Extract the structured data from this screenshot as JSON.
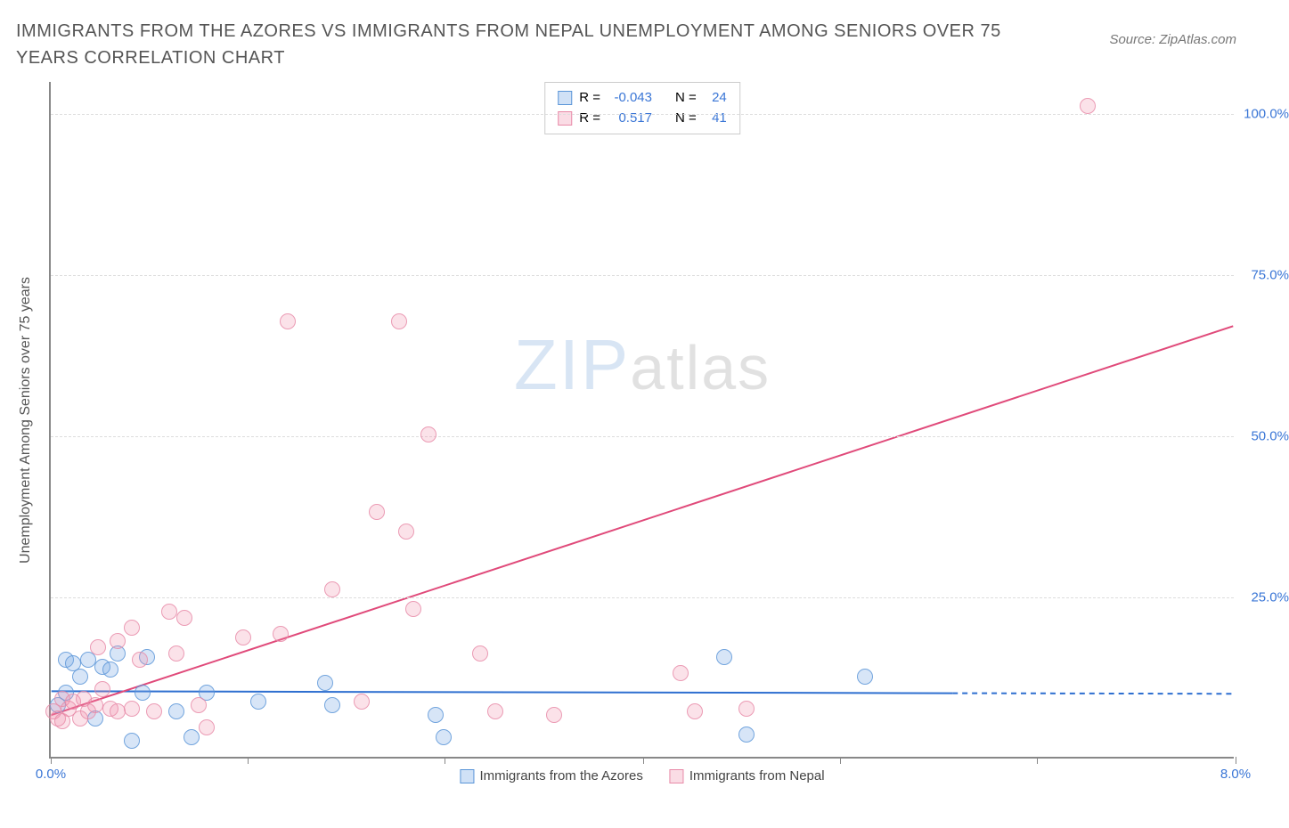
{
  "title": "IMMIGRANTS FROM THE AZORES VS IMMIGRANTS FROM NEPAL UNEMPLOYMENT AMONG SENIORS OVER 75 YEARS CORRELATION CHART",
  "source_label": "Source: ZipAtlas.com",
  "ylabel": "Unemployment Among Seniors over 75 years",
  "watermark_zip": "ZIP",
  "watermark_atlas": "atlas",
  "chart": {
    "type": "scatter",
    "background_color": "#ffffff",
    "grid_color": "#dddddd",
    "axis_color": "#888888",
    "xlim": [
      0,
      8
    ],
    "ylim": [
      0,
      105
    ],
    "x_ticks": [
      0,
      1.33,
      2.66,
      4.0,
      5.33,
      6.66,
      8.0
    ],
    "x_tick_labels": {
      "0": "0.0%",
      "8": "8.0%"
    },
    "x_tick_label_color": "#3a76d6",
    "y_ticks": [
      25,
      50,
      75,
      100
    ],
    "y_tick_labels": {
      "25": "25.0%",
      "50": "50.0%",
      "75": "75.0%",
      "100": "100.0%"
    },
    "y_tick_label_color": "#3a76d6",
    "point_radius": 9,
    "series": [
      {
        "name": "Immigrants from the Azores",
        "fill_color": "rgba(120,170,230,0.35)",
        "stroke_color": "#5a95d8",
        "trend_color": "#2e6fd0",
        "trend_style": "solid_then_dashed",
        "trend_solid_until_x": 6.1,
        "R_label": "R =",
        "R": "-0.043",
        "N_label": "N =",
        "N": "24",
        "trend": {
          "y_at_x0": 10.2,
          "y_at_x8": 9.8
        },
        "points": [
          {
            "x": 0.05,
            "y": 8
          },
          {
            "x": 0.1,
            "y": 15
          },
          {
            "x": 0.1,
            "y": 10
          },
          {
            "x": 0.15,
            "y": 14.5
          },
          {
            "x": 0.2,
            "y": 12.5
          },
          {
            "x": 0.25,
            "y": 15
          },
          {
            "x": 0.35,
            "y": 14
          },
          {
            "x": 0.4,
            "y": 13.5
          },
          {
            "x": 0.45,
            "y": 16
          },
          {
            "x": 0.55,
            "y": 2.5
          },
          {
            "x": 0.65,
            "y": 15.5
          },
          {
            "x": 0.62,
            "y": 10
          },
          {
            "x": 0.85,
            "y": 7
          },
          {
            "x": 0.95,
            "y": 3
          },
          {
            "x": 1.05,
            "y": 10
          },
          {
            "x": 1.4,
            "y": 8.5
          },
          {
            "x": 1.85,
            "y": 11.5
          },
          {
            "x": 1.9,
            "y": 8
          },
          {
            "x": 2.65,
            "y": 3
          },
          {
            "x": 2.6,
            "y": 6.5
          },
          {
            "x": 4.55,
            "y": 15.5
          },
          {
            "x": 4.7,
            "y": 3.5
          },
          {
            "x": 5.5,
            "y": 12.5
          },
          {
            "x": 0.3,
            "y": 6
          }
        ]
      },
      {
        "name": "Immigrants from Nepal",
        "fill_color": "rgba(240,140,170,0.30)",
        "stroke_color": "#e88aa8",
        "trend_color": "#e04a7a",
        "trend_style": "solid",
        "R_label": "R =",
        "R": "0.517",
        "N_label": "N =",
        "N": "41",
        "trend": {
          "y_at_x0": 6.5,
          "y_at_x8": 67
        },
        "points": [
          {
            "x": 0.02,
            "y": 7
          },
          {
            "x": 0.05,
            "y": 6
          },
          {
            "x": 0.08,
            "y": 9
          },
          {
            "x": 0.08,
            "y": 5.5
          },
          {
            "x": 0.12,
            "y": 7.5
          },
          {
            "x": 0.15,
            "y": 8.5
          },
          {
            "x": 0.2,
            "y": 6
          },
          {
            "x": 0.22,
            "y": 9
          },
          {
            "x": 0.25,
            "y": 7
          },
          {
            "x": 0.3,
            "y": 8
          },
          {
            "x": 0.35,
            "y": 10.5
          },
          {
            "x": 0.32,
            "y": 17
          },
          {
            "x": 0.4,
            "y": 7.5
          },
          {
            "x": 0.45,
            "y": 18
          },
          {
            "x": 0.45,
            "y": 7
          },
          {
            "x": 0.55,
            "y": 20
          },
          {
            "x": 0.55,
            "y": 7.5
          },
          {
            "x": 0.6,
            "y": 15
          },
          {
            "x": 0.7,
            "y": 7
          },
          {
            "x": 0.8,
            "y": 22.5
          },
          {
            "x": 0.85,
            "y": 16
          },
          {
            "x": 0.9,
            "y": 21.5
          },
          {
            "x": 1.0,
            "y": 8
          },
          {
            "x": 1.05,
            "y": 4.5
          },
          {
            "x": 1.3,
            "y": 18.5
          },
          {
            "x": 1.6,
            "y": 67.5
          },
          {
            "x": 1.55,
            "y": 19
          },
          {
            "x": 1.9,
            "y": 26
          },
          {
            "x": 2.1,
            "y": 8.5
          },
          {
            "x": 2.2,
            "y": 38
          },
          {
            "x": 2.35,
            "y": 67.5
          },
          {
            "x": 2.4,
            "y": 35
          },
          {
            "x": 2.45,
            "y": 23
          },
          {
            "x": 2.55,
            "y": 50
          },
          {
            "x": 2.9,
            "y": 16
          },
          {
            "x": 3.0,
            "y": 7
          },
          {
            "x": 3.4,
            "y": 6.5
          },
          {
            "x": 4.25,
            "y": 13
          },
          {
            "x": 4.35,
            "y": 7
          },
          {
            "x": 4.7,
            "y": 7.5
          },
          {
            "x": 7.0,
            "y": 101
          }
        ]
      }
    ]
  },
  "legend": {
    "series1_label": "Immigrants from the Azores",
    "series2_label": "Immigrants from Nepal"
  }
}
